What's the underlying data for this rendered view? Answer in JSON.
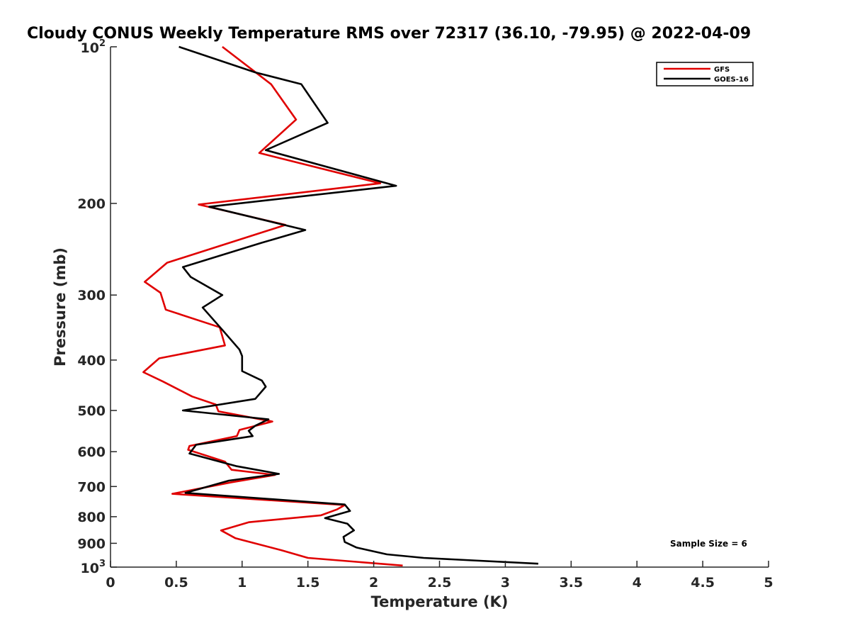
{
  "chart_data": {
    "type": "line",
    "title": "Cloudy CONUS Weekly Temperature RMS over 72317 (36.10, -79.95) @ 2022-04-09",
    "xlabel": "Temperature (K)",
    "ylabel": "Pressure (mb)",
    "xlim": [
      0,
      5
    ],
    "ylim": [
      100,
      1000
    ],
    "yscale": "log",
    "y_reversed": true,
    "grid": false,
    "legend_position": "top-right",
    "x_ticks": [
      0,
      0.5,
      1,
      1.5,
      2,
      2.5,
      3,
      3.5,
      4,
      4.5,
      5
    ],
    "x_tick_labels": [
      "0",
      "0.5",
      "1",
      "1.5",
      "2",
      "2.5",
      "3",
      "3.5",
      "4",
      "4.5",
      "5"
    ],
    "y_ticks": [
      {
        "value": 100,
        "base": "10",
        "exp": "2"
      },
      {
        "value": 200,
        "label": "200"
      },
      {
        "value": 300,
        "label": "300"
      },
      {
        "value": 400,
        "label": "400"
      },
      {
        "value": 500,
        "label": "500"
      },
      {
        "value": 600,
        "label": "600"
      },
      {
        "value": 700,
        "label": "700"
      },
      {
        "value": 800,
        "label": "800"
      },
      {
        "value": 900,
        "label": "900"
      },
      {
        "value": 1000,
        "base": "10",
        "exp": "3"
      }
    ],
    "annotation": "Sample Size = 6",
    "series": [
      {
        "name": "GFS",
        "color": "#e00000",
        "points": [
          [
            0.85,
            100
          ],
          [
            1.22,
            118
          ],
          [
            1.41,
            138
          ],
          [
            1.13,
            160
          ],
          [
            2.05,
            183
          ],
          [
            0.67,
            201
          ],
          [
            1.33,
            220
          ],
          [
            0.43,
            260
          ],
          [
            0.26,
            283
          ],
          [
            0.38,
            297
          ],
          [
            0.42,
            320
          ],
          [
            0.83,
            346
          ],
          [
            0.87,
            375
          ],
          [
            0.37,
            397
          ],
          [
            0.25,
            422
          ],
          [
            0.4,
            440
          ],
          [
            0.62,
            470
          ],
          [
            0.8,
            487
          ],
          [
            0.82,
            502
          ],
          [
            1.23,
            525
          ],
          [
            0.98,
            545
          ],
          [
            0.96,
            560
          ],
          [
            0.6,
            585
          ],
          [
            0.59,
            595
          ],
          [
            0.87,
            627
          ],
          [
            0.92,
            650
          ],
          [
            1.25,
            665
          ],
          [
            0.92,
            687
          ],
          [
            0.47,
            723
          ],
          [
            1.78,
            760
          ],
          [
            1.72,
            775
          ],
          [
            1.6,
            795
          ],
          [
            1.05,
            820
          ],
          [
            0.84,
            850
          ],
          [
            0.95,
            880
          ],
          [
            1.3,
            928
          ],
          [
            1.5,
            960
          ],
          [
            2.22,
            993
          ]
        ]
      },
      {
        "name": "GOES-16",
        "color": "#000000",
        "points": [
          [
            0.52,
            100
          ],
          [
            1.1,
            112
          ],
          [
            1.45,
            118
          ],
          [
            1.65,
            140
          ],
          [
            1.18,
            158
          ],
          [
            2.17,
            185
          ],
          [
            0.75,
            203
          ],
          [
            1.48,
            225
          ],
          [
            1.15,
            238
          ],
          [
            0.55,
            265
          ],
          [
            0.61,
            277
          ],
          [
            0.85,
            300
          ],
          [
            0.7,
            317
          ],
          [
            0.85,
            350
          ],
          [
            0.98,
            382
          ],
          [
            1.0,
            393
          ],
          [
            1.0,
            420
          ],
          [
            1.15,
            438
          ],
          [
            1.18,
            450
          ],
          [
            1.1,
            475
          ],
          [
            0.55,
            500
          ],
          [
            1.2,
            520
          ],
          [
            1.1,
            535
          ],
          [
            1.05,
            547
          ],
          [
            1.08,
            560
          ],
          [
            0.65,
            582
          ],
          [
            0.6,
            605
          ],
          [
            0.96,
            640
          ],
          [
            1.28,
            662
          ],
          [
            0.9,
            682
          ],
          [
            0.57,
            720
          ],
          [
            1.78,
            758
          ],
          [
            1.82,
            780
          ],
          [
            1.63,
            805
          ],
          [
            1.8,
            825
          ],
          [
            1.85,
            850
          ],
          [
            1.77,
            875
          ],
          [
            1.78,
            895
          ],
          [
            1.87,
            917
          ],
          [
            2.1,
            945
          ],
          [
            2.38,
            960
          ],
          [
            3.25,
            985
          ]
        ]
      }
    ]
  }
}
